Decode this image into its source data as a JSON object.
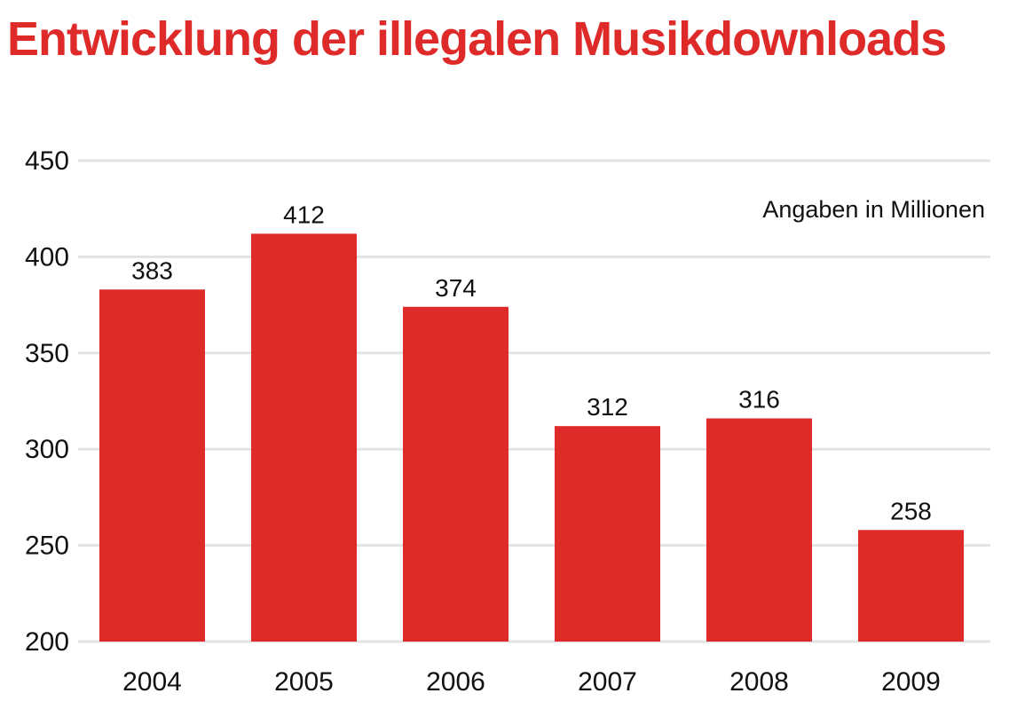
{
  "colors": {
    "title": "#df2a2a",
    "bar": "#df2a2a",
    "gridline": "#e3e3e3",
    "text": "#111111"
  },
  "chart_data": {
    "type": "bar",
    "title": "Entwicklung der illegalen Musikdownloads",
    "subtitle": "",
    "annotation": "Angaben in Millionen",
    "xlabel": "",
    "ylabel": "",
    "categories": [
      "2004",
      "2005",
      "2006",
      "2007",
      "2008",
      "2009"
    ],
    "values": [
      383,
      412,
      374,
      312,
      316,
      258
    ],
    "value_labels": [
      "383",
      "412",
      "374",
      "312",
      "316",
      "258"
    ],
    "ylim": [
      200,
      450
    ],
    "yticks": [
      200,
      250,
      300,
      350,
      400,
      450
    ],
    "grid": true,
    "legend": "none"
  }
}
